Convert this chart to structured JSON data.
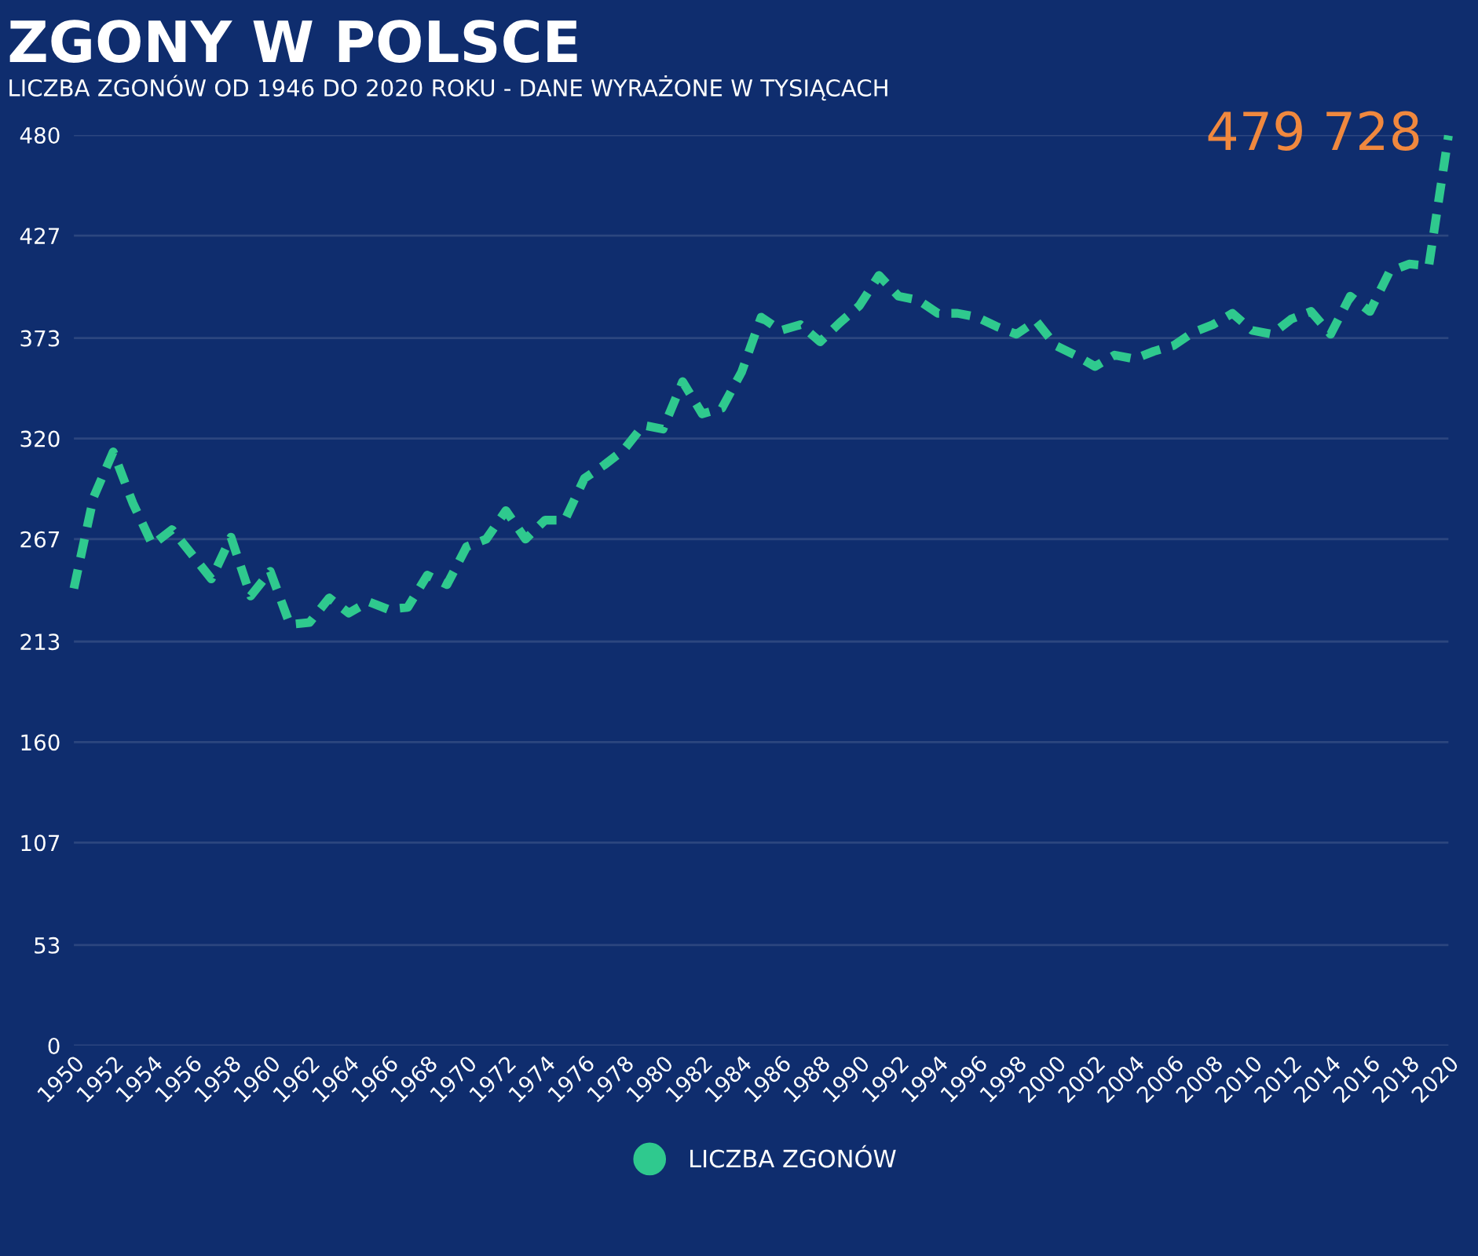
{
  "chart_data": {
    "type": "line",
    "title": "ZGONY W POLSCE",
    "subtitle": "LICZBA ZGONÓW OD 1946 DO 2020 ROKU - DANE WYRAŻONE W TYSIĄCACH",
    "x": [
      1950,
      1951,
      1952,
      1953,
      1954,
      1955,
      1956,
      1957,
      1958,
      1959,
      1960,
      1961,
      1962,
      1963,
      1964,
      1965,
      1966,
      1967,
      1968,
      1969,
      1970,
      1971,
      1972,
      1973,
      1974,
      1975,
      1976,
      1977,
      1978,
      1979,
      1980,
      1981,
      1982,
      1983,
      1984,
      1985,
      1986,
      1987,
      1988,
      1989,
      1990,
      1991,
      1992,
      1993,
      1994,
      1995,
      1996,
      1997,
      1998,
      1999,
      2000,
      2001,
      2002,
      2003,
      2004,
      2005,
      2006,
      2007,
      2008,
      2009,
      2010,
      2011,
      2012,
      2013,
      2014,
      2015,
      2016,
      2017,
      2018,
      2019,
      2020
    ],
    "series": [
      {
        "name": "LICZBA ZGONÓW",
        "color": "#2fc98e",
        "values": [
          241,
          289,
          313,
          286,
          264,
          272,
          259,
          246,
          268,
          237,
          250,
          222,
          223,
          236,
          228,
          234,
          230,
          231,
          248,
          243,
          263,
          267,
          282,
          267,
          277,
          277,
          299,
          306,
          314,
          327,
          325,
          350,
          333,
          336,
          355,
          384,
          377,
          380,
          371,
          381,
          390,
          406,
          395,
          393,
          386,
          386,
          384,
          379,
          375,
          382,
          369,
          364,
          358,
          364,
          362,
          366,
          369,
          376,
          380,
          386,
          377,
          375,
          383,
          387,
          375,
          395,
          387,
          408,
          412,
          411,
          479.728
        ]
      }
    ],
    "xlim": [
      1950,
      2020
    ],
    "xticks": [
      1950,
      1952,
      1954,
      1956,
      1958,
      1960,
      1962,
      1964,
      1966,
      1968,
      1970,
      1972,
      1974,
      1976,
      1978,
      1980,
      1982,
      1984,
      1986,
      1988,
      1990,
      1992,
      1994,
      1996,
      1998,
      2000,
      2002,
      2004,
      2006,
      2008,
      2010,
      2012,
      2014,
      2016,
      2018,
      2020
    ],
    "ylim": [
      0,
      480
    ],
    "yticks": [
      0,
      53,
      107,
      160,
      213,
      267,
      320,
      373,
      427,
      480
    ],
    "grid": "y",
    "line_style": "dashed",
    "legend": "bottom",
    "annotations": [
      {
        "text": "479 728",
        "x": 2020,
        "y": 479.728
      }
    ]
  }
}
